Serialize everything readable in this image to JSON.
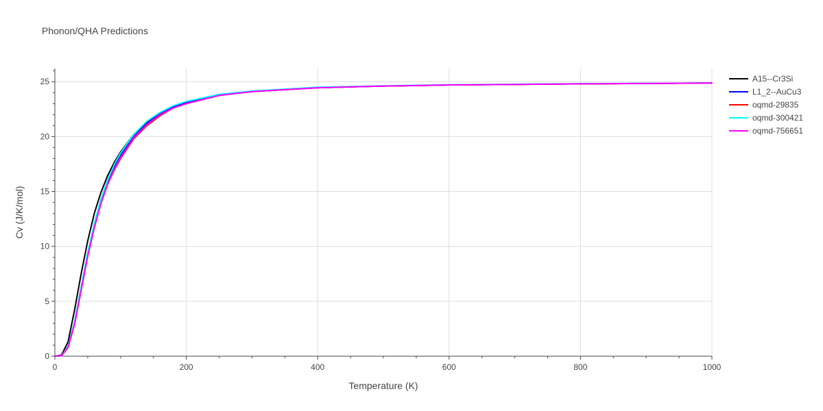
{
  "chart_data": {
    "type": "line",
    "title": "Phonon/QHA Predictions",
    "xlabel": "Temperature (K)",
    "ylabel": "Cv (J/K/mol)",
    "xlim": [
      0,
      1000
    ],
    "ylim": [
      0,
      26.2
    ],
    "x_ticks": [
      0,
      200,
      400,
      600,
      800,
      1000
    ],
    "x_tick_labels": [
      "0",
      "200",
      "400",
      "600",
      "800",
      "1000"
    ],
    "y_ticks": [
      0,
      5,
      10,
      15,
      20,
      25
    ],
    "y_tick_labels": [
      "0",
      "5",
      "10",
      "15",
      "20",
      "25"
    ],
    "grid": true,
    "legend_position": "top-right",
    "series": [
      {
        "name": "A15--Cr3Si",
        "color": "#000000",
        "x": [
          0,
          10,
          20,
          30,
          40,
          50,
          60,
          70,
          80,
          90,
          100,
          120,
          140,
          160,
          180,
          200,
          250,
          300,
          400,
          500,
          600,
          700,
          800,
          1000
        ],
        "y": [
          0,
          0.1,
          1.3,
          4.2,
          7.5,
          10.5,
          13.0,
          14.9,
          16.4,
          17.6,
          18.6,
          20.2,
          21.3,
          22.1,
          22.7,
          23.1,
          23.8,
          24.1,
          24.45,
          24.6,
          24.7,
          24.75,
          24.8,
          24.87
        ]
      },
      {
        "name": "L1_2--AuCu3",
        "color": "#0000ff",
        "x": [
          0,
          10,
          20,
          30,
          40,
          50,
          60,
          70,
          80,
          90,
          100,
          120,
          140,
          160,
          180,
          200,
          250,
          300,
          400,
          500,
          600,
          700,
          800,
          1000
        ],
        "y": [
          0,
          0.05,
          0.9,
          3.1,
          6.3,
          9.4,
          12.0,
          14.2,
          15.9,
          17.2,
          18.3,
          20.0,
          21.2,
          22.1,
          22.7,
          23.1,
          23.8,
          24.1,
          24.45,
          24.6,
          24.7,
          24.75,
          24.8,
          24.87
        ]
      },
      {
        "name": "oqmd-29835",
        "color": "#ff0000",
        "x": [
          0,
          10,
          20,
          30,
          40,
          50,
          60,
          70,
          80,
          90,
          100,
          120,
          140,
          160,
          180,
          200,
          250,
          300,
          400,
          500,
          600,
          700,
          800,
          1000
        ],
        "y": [
          0,
          0.05,
          0.8,
          2.9,
          6.0,
          9.1,
          11.7,
          13.9,
          15.6,
          16.9,
          18.0,
          19.8,
          21.0,
          21.9,
          22.6,
          23.0,
          23.75,
          24.1,
          24.45,
          24.6,
          24.7,
          24.75,
          24.8,
          24.87
        ]
      },
      {
        "name": "oqmd-300421",
        "color": "#00ffff",
        "x": [
          0,
          10,
          20,
          30,
          40,
          50,
          60,
          70,
          80,
          90,
          100,
          120,
          140,
          160,
          180,
          200,
          250,
          300,
          400,
          500,
          600,
          700,
          800,
          1000
        ],
        "y": [
          0,
          0.05,
          0.9,
          3.1,
          6.3,
          9.4,
          12.1,
          14.3,
          16.0,
          17.4,
          18.5,
          20.2,
          21.4,
          22.2,
          22.8,
          23.2,
          23.85,
          24.15,
          24.5,
          24.62,
          24.72,
          24.77,
          24.82,
          24.88
        ]
      },
      {
        "name": "oqmd-756651",
        "color": "#ff00ff",
        "x": [
          0,
          10,
          20,
          30,
          40,
          50,
          60,
          70,
          80,
          90,
          100,
          120,
          140,
          160,
          180,
          200,
          250,
          300,
          400,
          500,
          600,
          700,
          800,
          1000
        ],
        "y": [
          0,
          0.05,
          0.8,
          2.9,
          6.0,
          9.1,
          11.7,
          13.9,
          15.6,
          17.0,
          18.1,
          19.9,
          21.1,
          22.0,
          22.6,
          23.0,
          23.75,
          24.1,
          24.45,
          24.6,
          24.7,
          24.75,
          24.8,
          24.87
        ]
      }
    ]
  }
}
